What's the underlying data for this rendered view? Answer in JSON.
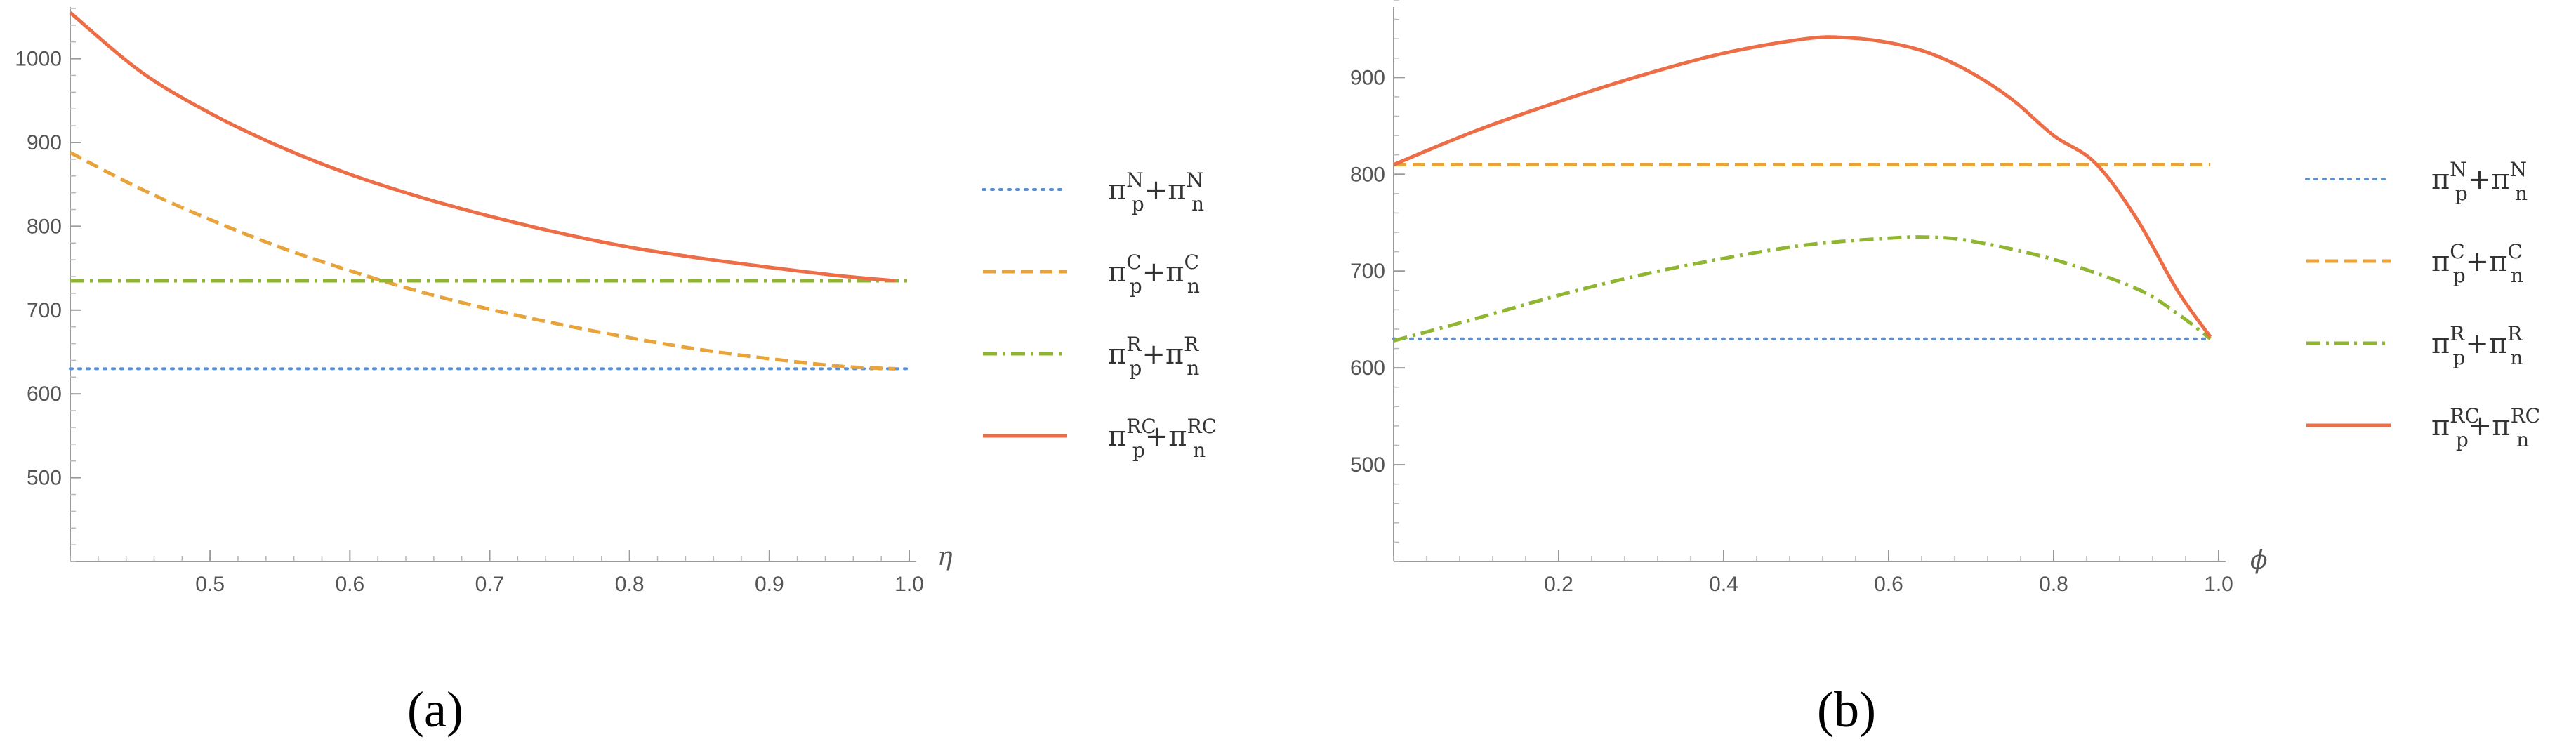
{
  "charts": [
    {
      "panel_label": "(a)",
      "chart_data": {
        "type": "line",
        "title": "",
        "xlabel": "η",
        "ylabel": "",
        "xlim": [
          0.4,
          1.0
        ],
        "ylim": [
          400,
          1070
        ],
        "xticks": [
          0.5,
          0.6,
          0.7,
          0.8,
          0.9,
          1.0
        ],
        "xtick_labels": [
          "0.5",
          "0.6",
          "0.7",
          "0.8",
          "0.9",
          "1.0"
        ],
        "yticks": [
          500,
          600,
          700,
          800,
          900,
          1000
        ],
        "ytick_labels": [
          "500",
          "600",
          "700",
          "800",
          "900",
          "1000"
        ],
        "grid": false,
        "legend_position": "right",
        "series": [
          {
            "key": "N",
            "x": [
              0.4,
              1.0
            ],
            "y": [
              630,
              630
            ]
          },
          {
            "key": "C",
            "x": [
              0.4,
              0.45,
              0.5,
              0.55,
              0.6,
              0.65,
              0.7,
              0.75,
              0.8,
              0.85,
              0.9,
              0.95,
              0.99
            ],
            "y": [
              888,
              845,
              808,
              775,
              747,
              722,
              701,
              683,
              667,
              653,
              642,
              633,
              630
            ]
          },
          {
            "key": "R",
            "x": [
              0.4,
              1.0
            ],
            "y": [
              735,
              735
            ]
          },
          {
            "key": "RC",
            "x": [
              0.4,
              0.45,
              0.5,
              0.55,
              0.6,
              0.65,
              0.7,
              0.75,
              0.8,
              0.85,
              0.9,
              0.95,
              0.99
            ],
            "y": [
              1055,
              985,
              935,
              895,
              862,
              835,
              812,
              792,
              775,
              762,
              751,
              741,
              735
            ]
          }
        ]
      }
    },
    {
      "panel_label": "(b)",
      "chart_data": {
        "type": "line",
        "title": "",
        "xlabel": "ϕ",
        "ylabel": "",
        "xlim": [
          0.0,
          1.0
        ],
        "ylim": [
          400,
          980
        ],
        "xticks": [
          0.2,
          0.4,
          0.6,
          0.8,
          1.0
        ],
        "xtick_labels": [
          "0.2",
          "0.4",
          "0.6",
          "0.8",
          "1.0"
        ],
        "yticks": [
          500,
          600,
          700,
          800,
          900
        ],
        "ytick_labels": [
          "500",
          "600",
          "700",
          "800",
          "900"
        ],
        "grid": false,
        "legend_position": "right",
        "series": [
          {
            "key": "N",
            "x": [
              0.0,
              0.99
            ],
            "y": [
              630,
              630
            ]
          },
          {
            "key": "C",
            "x": [
              0.0,
              0.99
            ],
            "y": [
              810,
              810
            ]
          },
          {
            "key": "R",
            "x": [
              0.0,
              0.1,
              0.2,
              0.3,
              0.4,
              0.5,
              0.6,
              0.65,
              0.7,
              0.8,
              0.9,
              0.95,
              0.99
            ],
            "y": [
              628,
              651,
              675,
              696,
              713,
              727,
              734,
              735,
              731,
              712,
              682,
              656,
              630
            ]
          },
          {
            "key": "RC",
            "x": [
              0.0,
              0.1,
              0.2,
              0.3,
              0.4,
              0.5,
              0.55,
              0.6,
              0.65,
              0.7,
              0.75,
              0.8,
              0.85,
              0.9,
              0.95,
              0.99
            ],
            "y": [
              810,
              845,
              875,
              902,
              925,
              940,
              941,
              936,
              925,
              905,
              877,
              840,
              812,
              755,
              680,
              632
            ]
          }
        ]
      }
    }
  ],
  "legend": [
    {
      "key": "N",
      "p": "π",
      "sub1": "p",
      "sup1": "N",
      "plus": "+",
      "q": "π",
      "sub2": "n",
      "sup2": "N",
      "color": "#5b8fd3",
      "style": "dotted"
    },
    {
      "key": "C",
      "p": "π",
      "sub1": "p",
      "sup1": "C",
      "plus": "+",
      "q": "π",
      "sub2": "n",
      "sup2": "C",
      "color": "#e8a33a",
      "style": "dashed"
    },
    {
      "key": "R",
      "p": "π",
      "sub1": "p",
      "sup1": "R",
      "plus": "+",
      "q": "π",
      "sub2": "n",
      "sup2": "R",
      "color": "#8fb531",
      "style": "dashdot"
    },
    {
      "key": "RC",
      "p": "π",
      "sub1": "p",
      "sup1": "RC",
      "plus": "+",
      "q": "π",
      "sub2": "n",
      "sup2": "RC",
      "color": "#ec6d46",
      "style": "solid"
    }
  ]
}
